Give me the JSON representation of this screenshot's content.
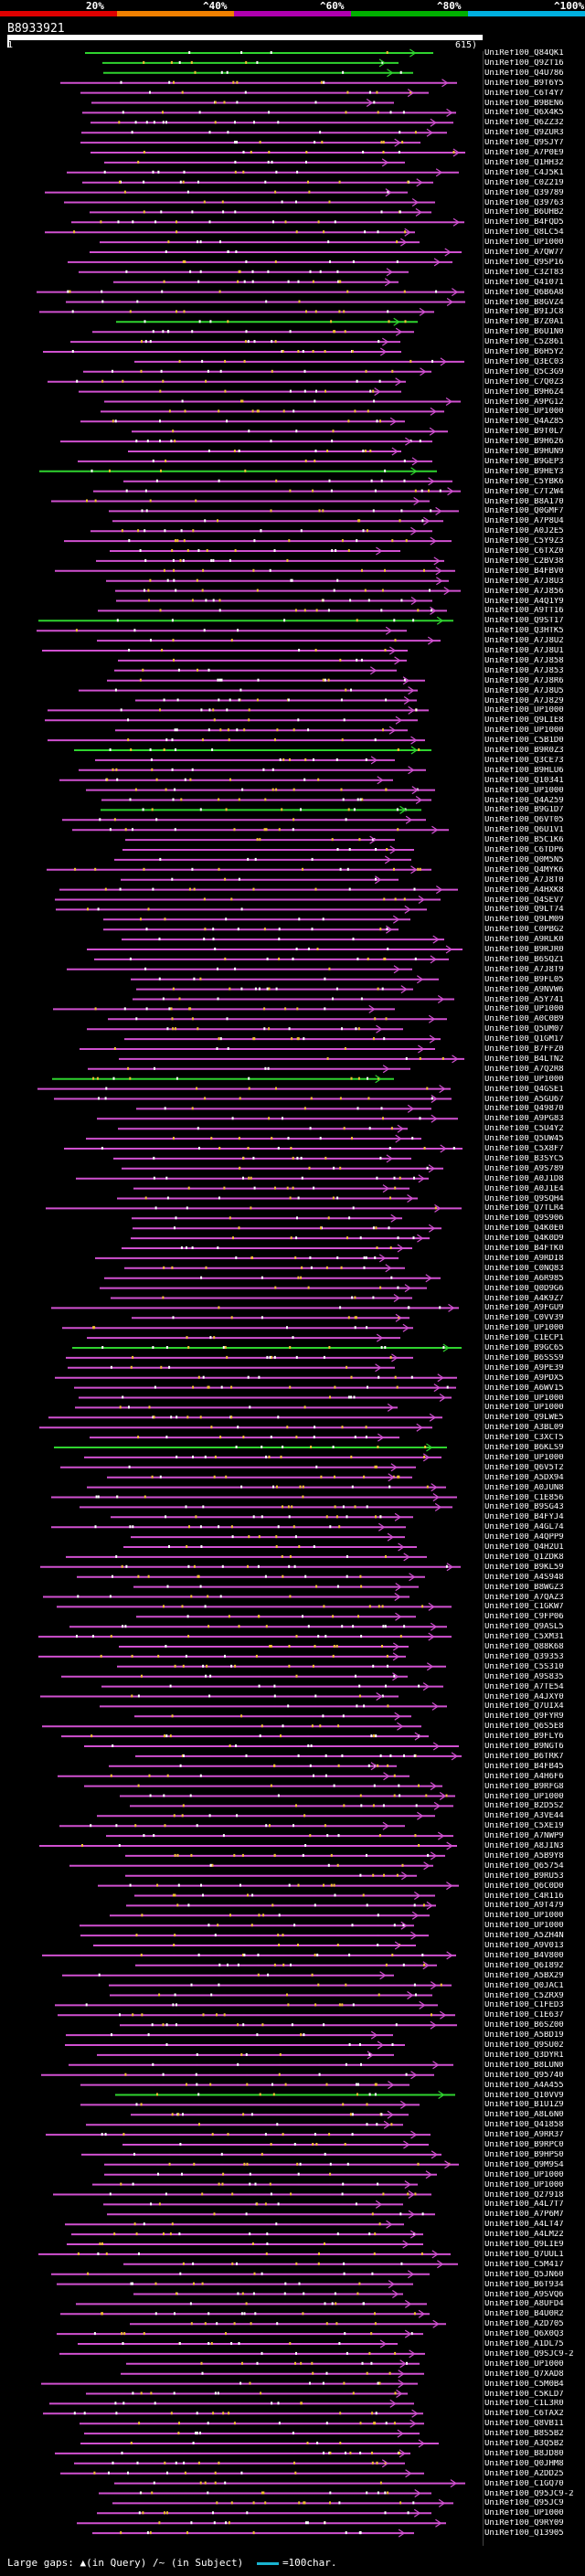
{
  "coverage_legend": {
    "labels": [
      "20%",
      "^40%",
      "^60%",
      "^80%",
      "^100%"
    ],
    "colors": [
      "#e00000",
      "#f08000",
      "#b000b0",
      "#00b000",
      "#00b0e0"
    ]
  },
  "query": {
    "id": "B8933921",
    "start": "1",
    "end": "615"
  },
  "hits": [
    "UniRef100_Q84QK1",
    "UniRef100_Q9ZT16",
    "UniRef100_Q4U786",
    "UniRef100_B9T6Y5",
    "UniRef100_C6T4Y7",
    "UniRef100_B9BEN6",
    "UniRef100_Q6X4K5",
    "UniRef100_Q6ZZ32",
    "UniRef100_Q9ZUR3",
    "UniRef100_Q9SJY7",
    "UniRef100_A7P0E9",
    "UniRef100_Q1HH32",
    "UniRef100_C4J5K1",
    "UniRef100_C0Z219",
    "UniRef100_Q39789",
    "UniRef100_Q39763",
    "UniRef100_B6UHB2",
    "UniRef100_B4FQD5",
    "UniRef100_Q8LC54",
    "UniRef100_UP1000",
    "UniRef100_A7QW77",
    "UniRef100_Q9SP16",
    "UniRef100_C3ZT83",
    "UniRef100_Q41071",
    "UniRef100_Q6B6A8",
    "UniRef100_B8GVZ4",
    "UniRef100_B9IJC8",
    "UniRef100_B7Z0A1",
    "UniRef100_B6U1N0",
    "UniRef100_C5Z861",
    "UniRef100_B6H5Y2",
    "UniRef100_Q3EC03",
    "UniRef100_Q5C3G9",
    "UniRef100_C7Q0Z3",
    "UniRef100_B9H6Z4",
    "UniRef100_A9PG12",
    "UniRef100_UP1000",
    "UniRef100_Q4AZ85",
    "UniRef100_B9T0L7",
    "UniRef100_B9H626",
    "UniRef100_B9HUN9",
    "UniRef100_B9GEP3",
    "UniRef100_B9HEY3",
    "UniRef100_C5YBK6",
    "UniRef100_C7T2W4",
    "UniRef100_B8A170",
    "UniRef100_Q0GMF7",
    "UniRef100_A7P8U4",
    "UniRef100_A0J2E5",
    "UniRef100_C5Y9Z3",
    "UniRef100_C6TXZ0",
    "UniRef100_C2BV38",
    "UniRef100_B4FBV0",
    "UniRef100_A7J8U3",
    "UniRef100_A7J856",
    "UniRef100_A4Q1Y9",
    "UniRef100_A9TT16",
    "UniRef100_Q9ST17",
    "UniRef100_Q3HTK5",
    "UniRef100_A7J8U2",
    "UniRef100_A7J8U1",
    "UniRef100_A7J858",
    "UniRef100_A7J853",
    "UniRef100_A7J8R6",
    "UniRef100_A7J8U5",
    "UniRef100_A7J829",
    "UniRef100_UP1000",
    "UniRef100_Q9LIE8",
    "UniRef100_UP1000",
    "UniRef100_C5B1D0",
    "UniRef100_B9R0Z3",
    "UniRef100_Q3CE73",
    "UniRef100_B9HLU6",
    "UniRef100_Q10341",
    "UniRef100_UP1000",
    "UniRef100_Q4A259",
    "UniRef100_B9G1D7",
    "UniRef100_Q6VT05",
    "UniRef100_Q6U1V1",
    "UniRef100_B5C1K6",
    "UniRef100_C6TDP6",
    "UniRef100_Q0M5N5",
    "UniRef100_Q4MYK6",
    "UniRef100_A7J8T0",
    "UniRef100_A4HXK8",
    "UniRef100_Q4SEV7",
    "UniRef100_Q9LT74",
    "UniRef100_Q9LM09",
    "UniRef100_C0PBG2",
    "UniRef100_A9RLK0",
    "UniRef100_B9RJR0",
    "UniRef100_B6SQZ1",
    "UniRef100_A7J8T9",
    "UniRef100_B9FL05",
    "UniRef100_A9NVW6",
    "UniRef100_A5Y741",
    "UniRef100_UP1000",
    "UniRef100_A0C0B9",
    "UniRef100_Q5UM07",
    "UniRef100_Q1GM17",
    "UniRef100_B7FFZ0",
    "UniRef100_B4LTN2",
    "UniRef100_A7Q2R8",
    "UniRef100_UP1000",
    "UniRef100_Q4GSE1",
    "UniRef100_A5GU67",
    "UniRef100_Q49870",
    "UniRef100_A9PG83",
    "UniRef100_C5U4Y2",
    "UniRef100_Q5UW45",
    "UniRef100_C5X8F7",
    "UniRef100_B3SYC5",
    "UniRef100_A9S789",
    "UniRef100_A0J1D8",
    "UniRef100_A0J1E4",
    "UniRef100_Q9SQH4",
    "UniRef100_Q7TLR4",
    "UniRef100_Q9S906",
    "UniRef100_Q4K0E0",
    "UniRef100_Q4K0D9",
    "UniRef100_B4FTK0",
    "UniRef100_A9RDI8",
    "UniRef100_C0NQ83",
    "UniRef100_A6R985",
    "UniRef100_Q0D9G6",
    "UniRef100_A4K9Z7",
    "UniRef100_A9FGU9",
    "UniRef100_C0VV39",
    "UniRef100_UP1000",
    "UniRef100_C1ECP1",
    "UniRef100_B9GC65",
    "UniRef100_B6SSS9",
    "UniRef100_A9PE39",
    "UniRef100_A9PDX5",
    "UniRef100_A6WV15",
    "UniRef100_UP1000",
    "UniRef100_UP1000",
    "UniRef100_Q9LWE5",
    "UniRef100_A3BL09",
    "UniRef100_C3XCT5",
    "UniRef100_B6KLS9",
    "UniRef100_UP1000",
    "UniRef100_Q6V5T2",
    "UniRef100_A5DX94",
    "UniRef100_A0JUN8",
    "UniRef100_C1E856",
    "UniRef100_B9SG43",
    "UniRef100_B4FYJ4",
    "UniRef100_A4GL74",
    "UniRef100_A4QPP9",
    "UniRef100_Q4H2U1",
    "UniRef100_Q1ZDK8",
    "UniRef100_B9KL59",
    "UniRef100_A4S948",
    "UniRef100_B8WGZ3",
    "UniRef100_A7QAZ3",
    "UniRef100_C1GKW7",
    "UniRef100_C9FP06",
    "UniRef100_Q9ASL5",
    "UniRef100_C5XM31",
    "UniRef100_Q88K68",
    "UniRef100_Q39353",
    "UniRef100_C5S310",
    "UniRef100_A9S835",
    "UniRef100_A7TE54",
    "UniRef100_A4JXY0",
    "UniRef100_Q7UIX4",
    "UniRef100_Q9FYR9",
    "UniRef100_Q6S5E8",
    "UniRef100_B9FLY6",
    "UniRef100_B9NGT6",
    "UniRef100_B6TRK7",
    "UniRef100_B4FB45",
    "UniRef100_A4H6F6",
    "UniRef100_B9RFG8",
    "UniRef100_UP1000",
    "UniRef100_B2D5S2",
    "UniRef100_A3VE44",
    "UniRef100_C5XE19",
    "UniRef100_A7NWP9",
    "UniRef100_A8JIN3",
    "UniRef100_A5B9Y8",
    "UniRef100_Q65754",
    "UniRef100_B9RU53",
    "UniRef100_Q6C0D0",
    "UniRef100_C4R116",
    "UniRef100_A9T479",
    "UniRef100_UP1000",
    "UniRef100_UP1000",
    "UniRef100_A5ZH4N",
    "UniRef100_A9V013",
    "UniRef100_B4V800",
    "UniRef100_Q6I892",
    "UniRef100_A5BX29",
    "UniRef100_Q0JAC1",
    "UniRef100_C5ZRX9",
    "UniRef100_C1FED3",
    "UniRef100_C1E637",
    "UniRef100_B6SZ00",
    "UniRef100_A5BD19",
    "UniRef100_Q9SU02",
    "UniRef100_Q3DYR1",
    "UniRef100_B8LUN0",
    "UniRef100_Q95740",
    "UniRef100_A4A455",
    "UniRef100_Q10VV9",
    "UniRef100_B1U1Z9",
    "UniRef100_A8L6N0",
    "UniRef100_Q41858",
    "UniRef100_A9RR37",
    "UniRef100_B9RPC0",
    "UniRef100_B9HPS0",
    "UniRef100_Q9M9S4",
    "UniRef100_UP1000",
    "UniRef100_UP1000",
    "UniRef100_Q27918",
    "UniRef100_A4L7T7",
    "UniRef100_A7P6M7",
    "UniRef100_A4LT47",
    "UniRef100_A4LM22",
    "UniRef100_Q9LIE9",
    "UniRef100_Q7UUL1",
    "UniRef100_C5M417",
    "UniRef100_Q5JN60",
    "UniRef100_B6T934",
    "UniRef100_A9SVQ6",
    "UniRef100_A8UFD4",
    "UniRef100_B4U0R2",
    "UniRef100_A2D705",
    "UniRef100_Q6X0Q3",
    "UniRef100_A1DL75",
    "UniRef100_Q9SJC9-2",
    "UniRef100_UP1000",
    "UniRef100_Q7XAD8",
    "UniRef100_C5M0B4",
    "UniRef100_C5KLD7",
    "UniRef100_C1L3R0",
    "UniRef100_C6TAX2",
    "UniRef100_Q8VB11",
    "UniRef100_B8S5B2",
    "UniRef100_A3Q5B2",
    "UniRef100_B8JD80",
    "UniRef100_Q0JHM8",
    "UniRef100_A2DD25",
    "UniRef100_C1GQ70",
    "UniRef100_Q95JC9-2",
    "UniRef100_Q95JC9",
    "UniRef100_UP1000",
    "UniRef100_Q9RY09",
    "UniRef100_Q13905"
  ],
  "footer": {
    "large_gaps": "Large gaps:",
    "query_gap": "▲(in Query)",
    "subject_gap": "/~ (in Subject)",
    "scale_label": "=100char."
  }
}
